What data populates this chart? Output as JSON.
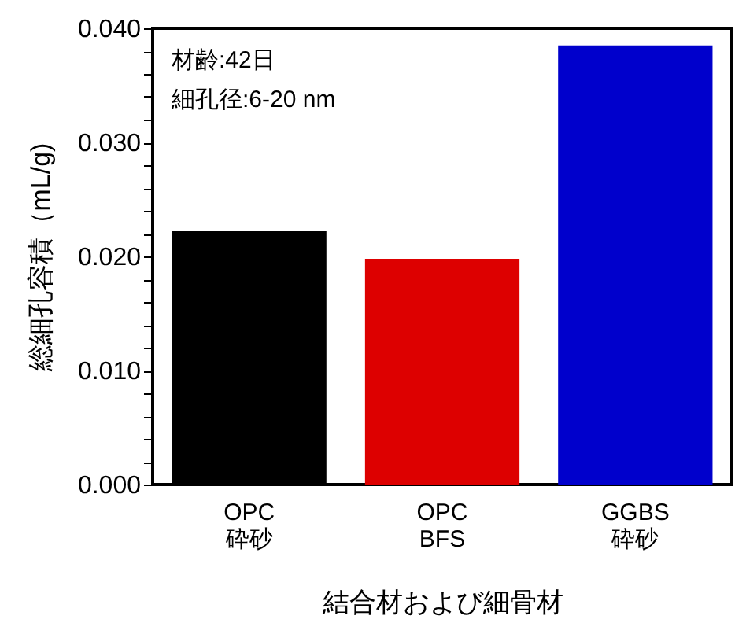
{
  "chart_data": {
    "type": "bar",
    "xlabel": "結合材および細骨材",
    "ylabel": "総細孔容積（mL/g)",
    "categories": [
      "OPC\n砕砂",
      "OPC\nBFS",
      "GGBS\n砕砂"
    ],
    "values": [
      0.0222,
      0.0198,
      0.0385
    ],
    "colors": [
      "#000000",
      "#dd0000",
      "#0000cc"
    ],
    "ylim": [
      0,
      0.04
    ],
    "yticks": [
      "0.000",
      {
        "value": 0.002,
        "label": null
      },
      {
        "value": 0.004,
        "label": null
      },
      {
        "value": 0.006,
        "label": null
      },
      {
        "value": 0.008,
        "label": null
      },
      {
        "value": 0.01,
        "label": "0.010"
      },
      {
        "value": 0.012,
        "label": null
      },
      {
        "value": 0.014,
        "label": null
      },
      {
        "value": 0.016,
        "label": null
      },
      {
        "value": 0.018,
        "label": null
      },
      {
        "value": 0.02,
        "label": "0.020"
      },
      {
        "value": 0.022,
        "label": null
      },
      {
        "value": 0.024,
        "label": null
      },
      {
        "value": 0.026,
        "label": null
      },
      {
        "value": 0.028,
        "label": null
      },
      {
        "value": 0.03,
        "label": "0.030"
      },
      {
        "value": 0.032,
        "label": null
      },
      {
        "value": 0.034,
        "label": null
      },
      {
        "value": 0.036,
        "label": null
      },
      {
        "value": 0.038,
        "label": null
      },
      {
        "value": 0.04,
        "label": "0.040"
      }
    ],
    "annotations": [
      "材齢:42日",
      "細孔径:6-20 nm"
    ],
    "grid": false
  }
}
